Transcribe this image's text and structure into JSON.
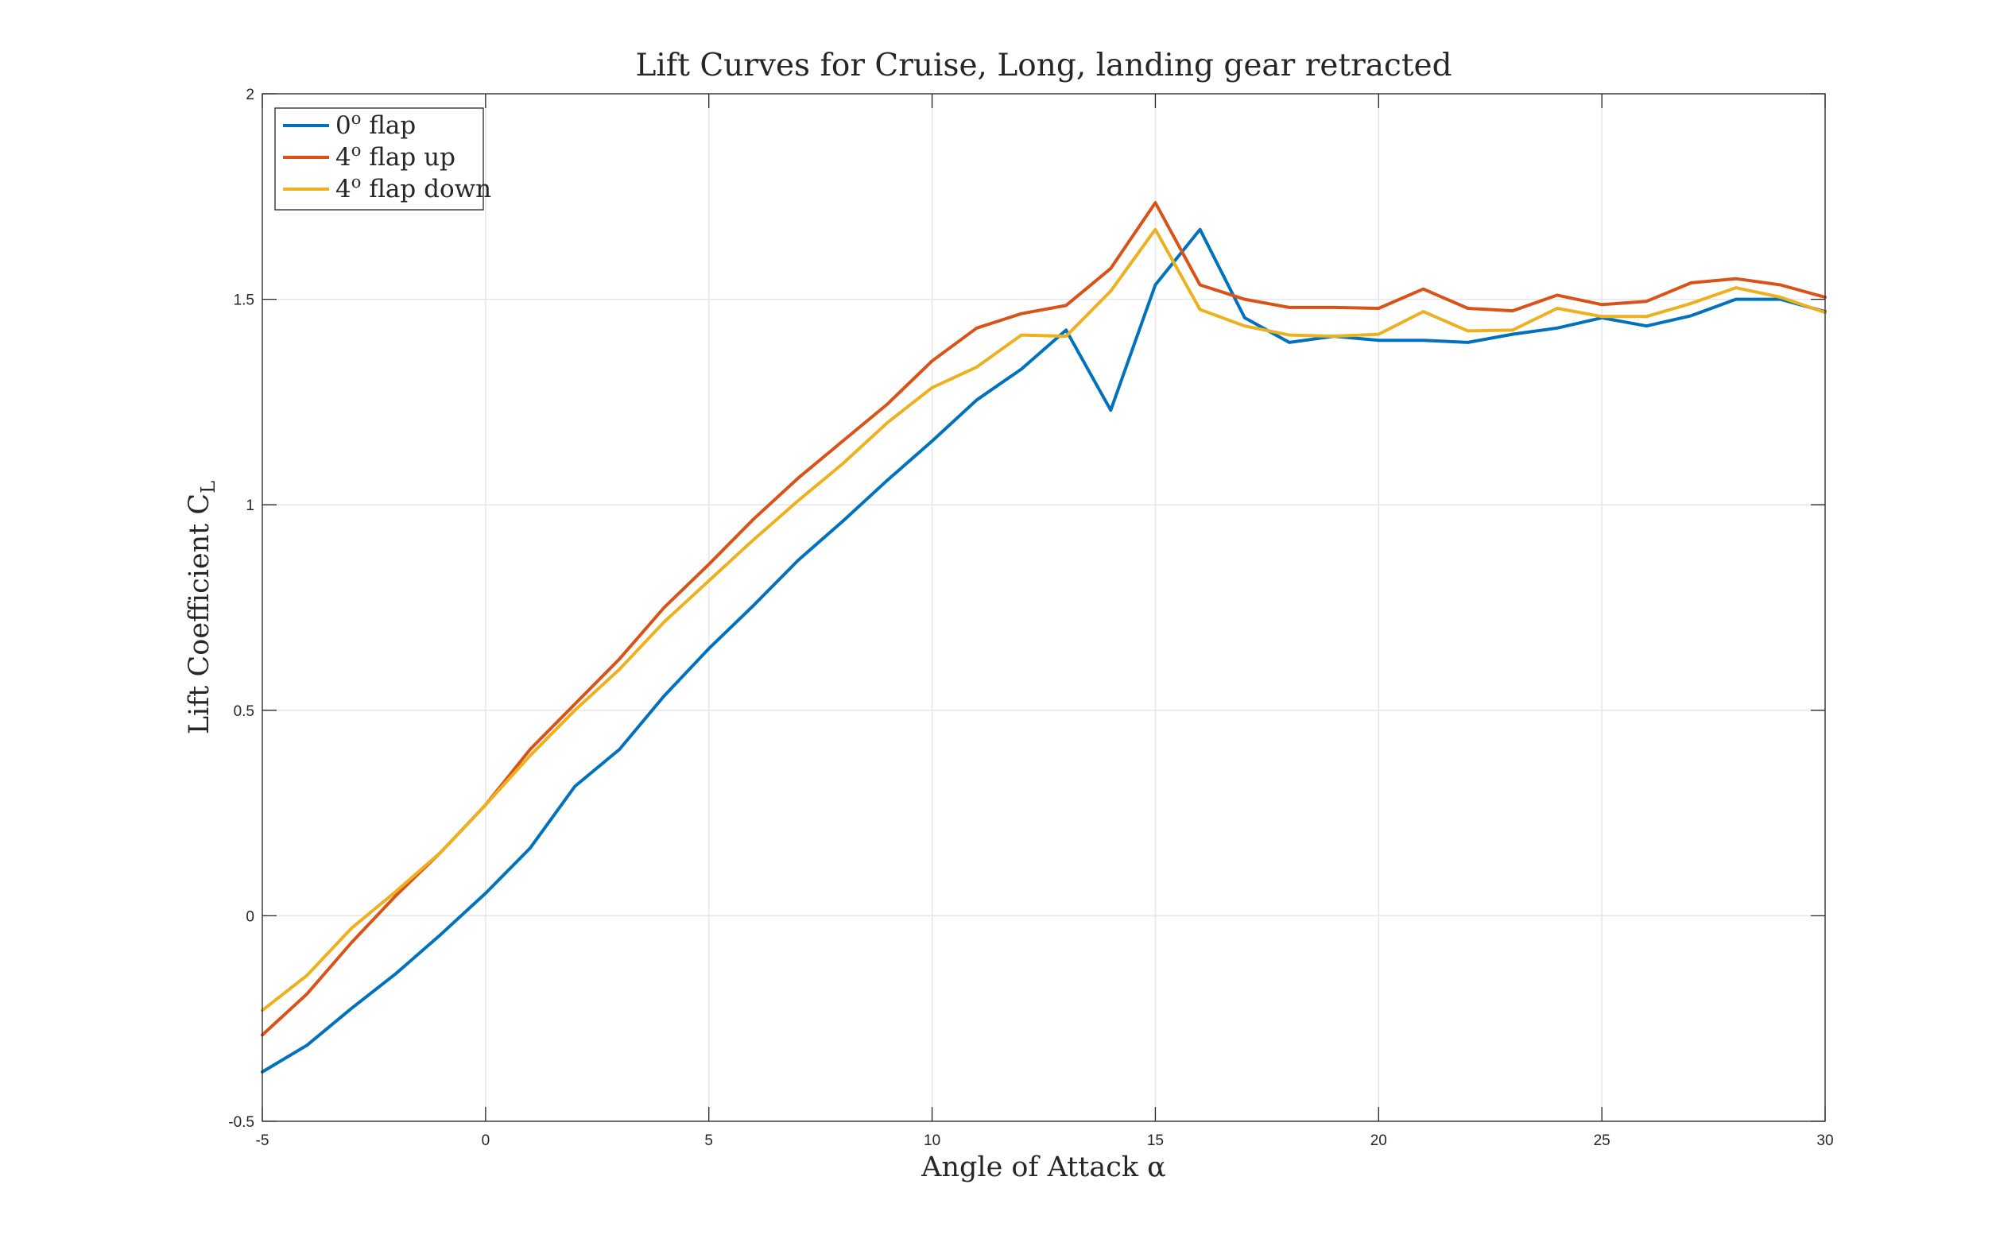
{
  "chart_data": {
    "type": "line",
    "title": "Lift Curves for Cruise, Long, landing gear retracted",
    "xlabel": "Angle of Attack α",
    "ylabel": "Lift Coefficient C",
    "ylabel_sub": "L",
    "xlim": [
      -5,
      30
    ],
    "ylim": [
      -0.5,
      2
    ],
    "xticks": [
      -5,
      0,
      5,
      10,
      15,
      20,
      25,
      30
    ],
    "yticks": [
      -0.5,
      0,
      0.5,
      1,
      1.5,
      2
    ],
    "xtick_labels": [
      "-5",
      "0",
      "5",
      "10",
      "15",
      "20",
      "25",
      "30"
    ],
    "ytick_labels": [
      "-0.5",
      "0",
      "0.5",
      "1",
      "1.5",
      "2"
    ],
    "grid": true,
    "legend_position": "top-left",
    "x": [
      -5,
      -4,
      -3,
      -2,
      -1,
      0,
      1,
      2,
      3,
      4,
      5,
      6,
      7,
      8,
      9,
      10,
      11,
      12,
      13,
      14,
      15,
      16,
      17,
      18,
      19,
      20,
      21,
      22,
      23,
      24,
      25,
      26,
      27,
      28,
      29,
      30
    ],
    "series": [
      {
        "name": "0",
        "name_sup": "o",
        "name_rest": " flap",
        "color": "#0072BD",
        "values": [
          -0.38,
          -0.315,
          -0.225,
          -0.14,
          -0.045,
          0.055,
          0.165,
          0.315,
          0.405,
          0.535,
          0.65,
          0.755,
          0.865,
          0.96,
          1.06,
          1.155,
          1.255,
          1.33,
          1.425,
          1.23,
          1.535,
          1.67,
          1.455,
          1.395,
          1.41,
          1.4,
          1.4,
          1.395,
          1.415,
          1.43,
          1.455,
          1.435,
          1.46,
          1.5,
          1.5,
          1.47
        ]
      },
      {
        "name": "4",
        "name_sup": "o",
        "name_rest": " flap up",
        "color": "#D95319",
        "values": [
          -0.29,
          -0.19,
          -0.065,
          0.05,
          0.155,
          0.27,
          0.405,
          0.515,
          0.625,
          0.75,
          0.855,
          0.965,
          1.065,
          1.155,
          1.245,
          1.35,
          1.43,
          1.465,
          1.485,
          1.575,
          1.735,
          1.535,
          1.5,
          1.48,
          1.48,
          1.478,
          1.525,
          1.478,
          1.472,
          1.51,
          1.487,
          1.495,
          1.54,
          1.55,
          1.535,
          1.505
        ]
      },
      {
        "name": "4",
        "name_sup": "o",
        "name_rest": " flap down",
        "color": "#EDB120",
        "values": [
          -0.23,
          -0.145,
          -0.03,
          0.06,
          0.155,
          0.27,
          0.39,
          0.5,
          0.6,
          0.715,
          0.815,
          0.915,
          1.01,
          1.1,
          1.2,
          1.285,
          1.335,
          1.413,
          1.41,
          1.52,
          1.67,
          1.475,
          1.435,
          1.413,
          1.41,
          1.415,
          1.47,
          1.423,
          1.425,
          1.478,
          1.458,
          1.458,
          1.49,
          1.528,
          1.505,
          1.468
        ]
      }
    ]
  }
}
